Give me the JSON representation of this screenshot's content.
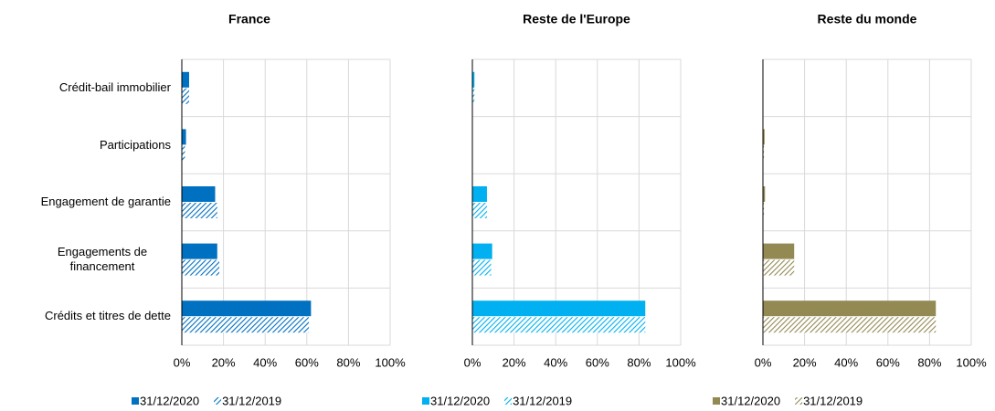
{
  "chart_data": [
    {
      "type": "bar",
      "orientation": "horizontal",
      "title": "France",
      "categories": [
        "Crédit-bail immobilier",
        "Participations",
        "Engagement de garantie",
        "Engagements de financement",
        "Crédits et titres de dette"
      ],
      "series": [
        {
          "name": "31/12/2020",
          "color": "#0070c0",
          "pattern": "solid",
          "values": [
            3.5,
            2,
            16,
            17,
            62
          ]
        },
        {
          "name": "31/12/2019",
          "color": "#0070c0",
          "pattern": "hatched",
          "values": [
            3.5,
            1.5,
            17,
            18,
            61
          ]
        }
      ],
      "xlim": [
        0,
        100
      ],
      "xticks": [
        {
          "value": 0,
          "label": "0%"
        },
        {
          "value": 20,
          "label": "20%"
        },
        {
          "value": 40,
          "label": "40%"
        },
        {
          "value": 60,
          "label": "60%"
        },
        {
          "value": 80,
          "label": "80%"
        },
        {
          "value": 100,
          "label": "100%"
        }
      ],
      "grid": true,
      "legend": "bottom"
    },
    {
      "type": "bar",
      "orientation": "horizontal",
      "title": "Reste de l'Europe",
      "series": [
        {
          "name": "31/12/2020",
          "color": "#00b0f0",
          "pattern": "solid",
          "values": [
            1,
            0,
            7,
            9.5,
            83
          ]
        },
        {
          "name": "31/12/2019",
          "color": "#00b0f0",
          "pattern": "hatched",
          "values": [
            1,
            0,
            7,
            9,
            83
          ]
        }
      ],
      "xlim": [
        0,
        100
      ],
      "xticks": [
        {
          "value": 0,
          "label": "0%"
        },
        {
          "value": 20,
          "label": "20%"
        },
        {
          "value": 40,
          "label": "40%"
        },
        {
          "value": 60,
          "label": "60%"
        },
        {
          "value": 80,
          "label": "80%"
        },
        {
          "value": 100,
          "label": "100%"
        }
      ],
      "grid": true,
      "legend": "bottom"
    },
    {
      "type": "bar",
      "orientation": "horizontal",
      "title": "Reste du monde",
      "series": [
        {
          "name": "31/12/2020",
          "color": "#938953",
          "pattern": "solid",
          "values": [
            0,
            0.8,
            1,
            15,
            83
          ]
        },
        {
          "name": "31/12/2019",
          "color": "#938953",
          "pattern": "hatched",
          "values": [
            0,
            0.5,
            0.5,
            15,
            83
          ]
        }
      ],
      "xlim": [
        0,
        100
      ],
      "xticks": [
        {
          "value": 0,
          "label": "0%"
        },
        {
          "value": 20,
          "label": "20%"
        },
        {
          "value": 40,
          "label": "40%"
        },
        {
          "value": 60,
          "label": "60%"
        },
        {
          "value": 80,
          "label": "80%"
        },
        {
          "value": 100,
          "label": "100%"
        }
      ],
      "grid": true,
      "legend": "bottom"
    }
  ]
}
